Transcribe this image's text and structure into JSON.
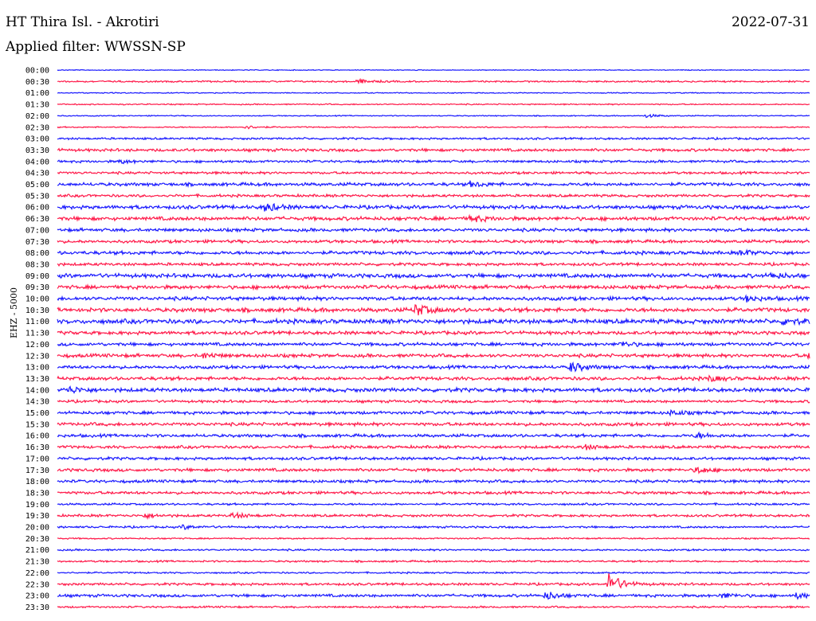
{
  "header": {
    "station_title": "HT Thira Isl. - Akrotiri",
    "date": "2022-07-31",
    "filter": "Applied filter: WWSSN-SP"
  },
  "channel_label": "EHZ - 5000",
  "colors": {
    "even_hour": "#1a1aff",
    "half_hour": "#ff1a4a"
  },
  "chart_data": {
    "type": "line",
    "title": "HT Thira Isl. - Akrotiri",
    "ylabel": "EHZ - 5000",
    "rows": [
      "00:00",
      "00:30",
      "01:00",
      "01:30",
      "02:00",
      "02:30",
      "03:00",
      "03:30",
      "04:00",
      "04:30",
      "05:00",
      "05:30",
      "06:00",
      "06:30",
      "07:00",
      "07:30",
      "08:00",
      "08:30",
      "09:00",
      "09:30",
      "10:00",
      "10:30",
      "11:00",
      "11:30",
      "12:00",
      "12:30",
      "13:00",
      "13:30",
      "14:00",
      "14:30",
      "15:00",
      "15:30",
      "16:00",
      "16:30",
      "17:00",
      "17:30",
      "18:00",
      "18:30",
      "19:00",
      "19:30",
      "20:00",
      "20:30",
      "21:00",
      "21:30",
      "22:00",
      "22:30",
      "23:00",
      "23:30"
    ],
    "noise_level": [
      0.4,
      0.8,
      0.5,
      0.6,
      0.5,
      0.6,
      1.0,
      1.4,
      1.2,
      1.2,
      1.6,
      1.3,
      1.8,
      1.8,
      1.6,
      1.5,
      1.7,
      1.4,
      2.0,
      1.8,
      1.8,
      2.0,
      2.2,
      1.7,
      1.6,
      1.7,
      1.6,
      1.7,
      1.9,
      1.3,
      1.5,
      1.6,
      1.5,
      1.4,
      1.4,
      1.5,
      1.4,
      1.4,
      1.0,
      1.2,
      1.0,
      0.7,
      0.9,
      0.9,
      0.8,
      1.2,
      1.4,
      0.9
    ],
    "events": [
      {
        "row": "00:30",
        "minute": 12.0,
        "amp": 2.5
      },
      {
        "row": "02:00",
        "minute": 23.5,
        "amp": 2.0
      },
      {
        "row": "02:30",
        "minute": 7.5,
        "amp": 2.0
      },
      {
        "row": "04:00",
        "minute": 2.5,
        "amp": 2.0
      },
      {
        "row": "05:00",
        "minute": 16.5,
        "amp": 3.0
      },
      {
        "row": "06:00",
        "minute": 8.3,
        "amp": 5.0
      },
      {
        "row": "06:30",
        "minute": 16.5,
        "amp": 4.0
      },
      {
        "row": "08:00",
        "minute": 27.3,
        "amp": 3.0
      },
      {
        "row": "09:00",
        "minute": 28.5,
        "amp": 3.0
      },
      {
        "row": "10:00",
        "minute": 27.5,
        "amp": 3.0
      },
      {
        "row": "10:30",
        "minute": 14.3,
        "amp": 7.0
      },
      {
        "row": "11:00",
        "minute": 29.0,
        "amp": 4.0
      },
      {
        "row": "12:00",
        "minute": 22.5,
        "amp": 3.0
      },
      {
        "row": "12:30",
        "minute": 5.8,
        "amp": 3.0
      },
      {
        "row": "12:30",
        "minute": 30.0,
        "amp": 4.0
      },
      {
        "row": "13:00",
        "minute": 20.5,
        "amp": 6.0
      },
      {
        "row": "13:30",
        "minute": 26.0,
        "amp": 3.0
      },
      {
        "row": "14:00",
        "minute": 0.5,
        "amp": 3.5
      },
      {
        "row": "14:00",
        "minute": 30.5,
        "amp": 5.0
      },
      {
        "row": "15:00",
        "minute": 24.5,
        "amp": 3.0
      },
      {
        "row": "16:00",
        "minute": 25.5,
        "amp": 3.0
      },
      {
        "row": "16:30",
        "minute": 21.0,
        "amp": 3.0
      },
      {
        "row": "17:30",
        "minute": 25.5,
        "amp": 4.0
      },
      {
        "row": "19:30",
        "minute": 3.5,
        "amp": 2.5
      },
      {
        "row": "19:30",
        "minute": 7.0,
        "amp": 3.5
      },
      {
        "row": "20:00",
        "minute": 5.0,
        "amp": 2.5
      },
      {
        "row": "22:30",
        "minute": 22.0,
        "amp": 13.0
      },
      {
        "row": "23:00",
        "minute": 19.5,
        "amp": 5.0
      },
      {
        "row": "23:00",
        "minute": 26.5,
        "amp": 3.0
      },
      {
        "row": "23:00",
        "minute": 29.5,
        "amp": 3.0
      }
    ]
  }
}
